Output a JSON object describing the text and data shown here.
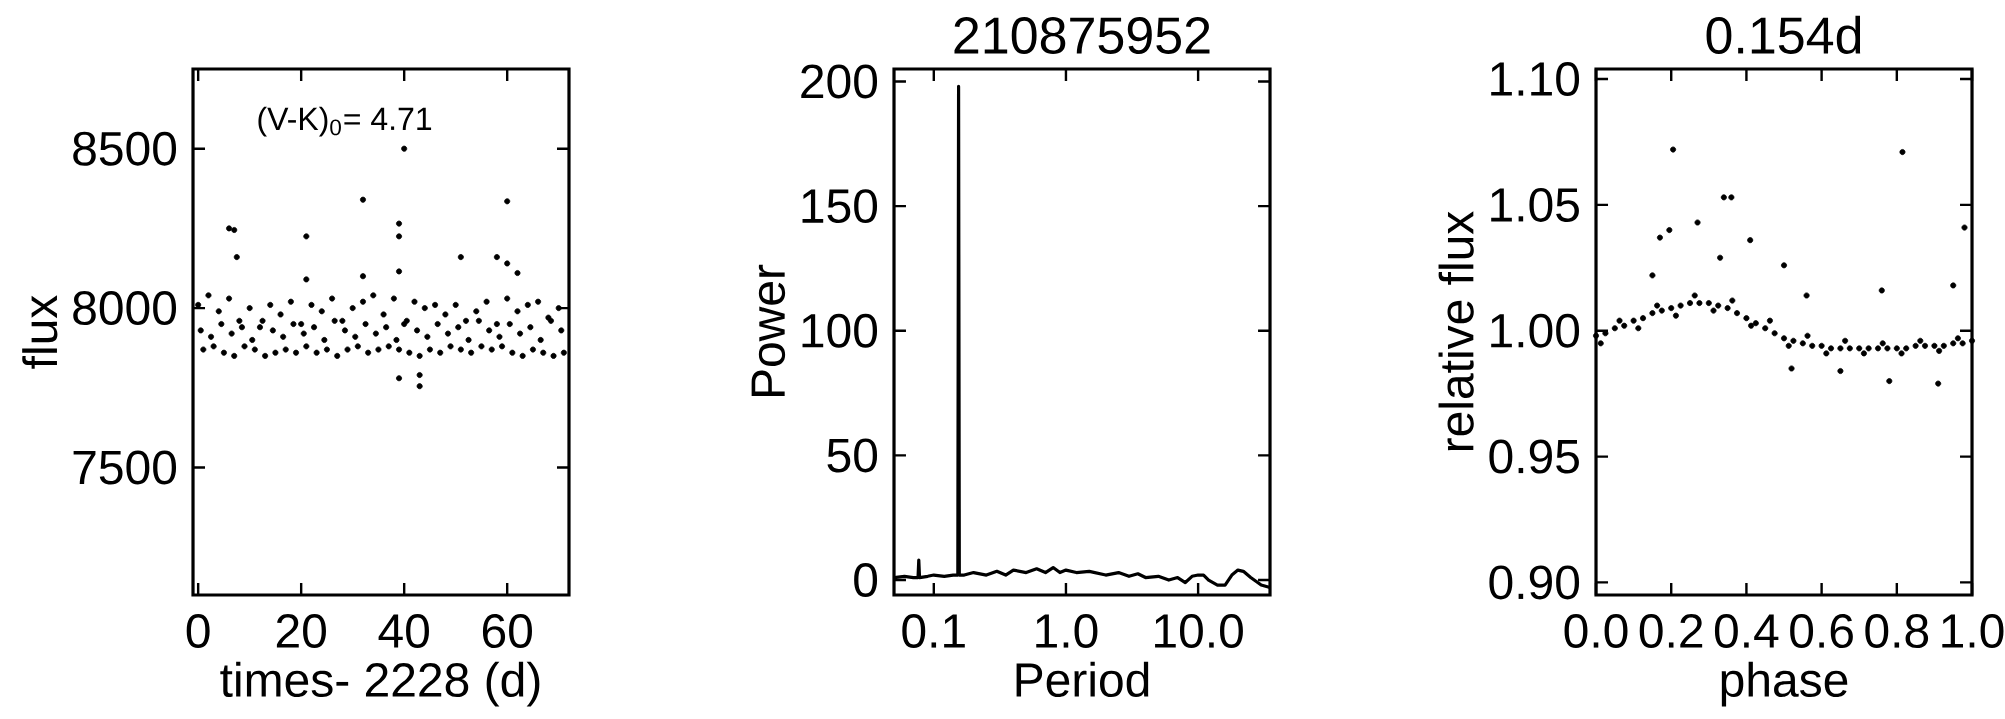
{
  "chart_data": [
    {
      "type": "scatter",
      "xlabel": "times- 2228 (d)",
      "ylabel": "flux",
      "annotations": [
        "(V-K)$_{0}$= 4.71"
      ],
      "xlim": [
        -1,
        72
      ],
      "ylim": [
        7100,
        8750
      ],
      "xticks": [
        0,
        20,
        40,
        60
      ],
      "yticks": [
        7500,
        8000,
        8500
      ],
      "marker": "circle",
      "series": [
        {
          "color": "#000000",
          "x": [
            0,
            1,
            2,
            3,
            4,
            5,
            6,
            7,
            8,
            9,
            10,
            11,
            12,
            13,
            14,
            15,
            16,
            17,
            18,
            19,
            20,
            21,
            22,
            23,
            24,
            25,
            26,
            27,
            28,
            29,
            30,
            31,
            32,
            33,
            34,
            35,
            36,
            37,
            38,
            39,
            40,
            41,
            42,
            43,
            44,
            45,
            46,
            47,
            48,
            49,
            50,
            51,
            52,
            53,
            54,
            55,
            56,
            57,
            58,
            59,
            60,
            61,
            62,
            63,
            64,
            65,
            66,
            67,
            68,
            69,
            70,
            71,
            0.5,
            2.5,
            4.5,
            6.5,
            8.5,
            10.5,
            12.5,
            14.5,
            16.5,
            18.5,
            20.5,
            22.5,
            24.5,
            26.5,
            28.5,
            30.5,
            32.5,
            34.5,
            36.5,
            38.5,
            40.5,
            42.5,
            44.5,
            46.5,
            48.5,
            50.5,
            52.5,
            54.5,
            56.5,
            58.5,
            60.5,
            62.5,
            64.5,
            66.5,
            68.5,
            70.5,
            6,
            7,
            7.5,
            21,
            21,
            32,
            32,
            39,
            39,
            39,
            40,
            51,
            60,
            58,
            60,
            62,
            39,
            43,
            43
          ],
          "values": [
            8010,
            7870,
            8040,
            7880,
            7990,
            7860,
            8030,
            7850,
            7960,
            7880,
            8000,
            7870,
            7940,
            7850,
            8010,
            7860,
            7980,
            7870,
            8020,
            7860,
            7950,
            7880,
            8010,
            7860,
            7990,
            7870,
            8030,
            7850,
            7960,
            7870,
            8000,
            7880,
            8020,
            7860,
            8040,
            7870,
            7980,
            7880,
            8030,
            7870,
            7950,
            7860,
            8020,
            7850,
            8000,
            7870,
            8010,
            7860,
            7980,
            7880,
            8010,
            7870,
            7960,
            7860,
            7990,
            7880,
            8020,
            7870,
            7950,
            7880,
            8030,
            7860,
            7990,
            7850,
            8010,
            7870,
            8020,
            7860,
            7970,
            7850,
            8000,
            7860,
            7930,
            7910,
            7950,
            7920,
            7940,
            7900,
            7960,
            7930,
            7910,
            7950,
            7920,
            7940,
            7900,
            7960,
            7930,
            7910,
            7950,
            7920,
            7940,
            7900,
            7960,
            7930,
            7910,
            7950,
            7920,
            7940,
            7900,
            7960,
            7930,
            7910,
            7950,
            7920,
            7940,
            7900,
            7960,
            7930,
            8250,
            8245,
            8160,
            8225,
            8090,
            8340,
            8100,
            8265,
            8225,
            8115,
            8500,
            8160,
            8335,
            8160,
            8140,
            8110,
            7780,
            7755,
            7790
          ]
        }
      ]
    },
    {
      "type": "line",
      "title": "210875952",
      "xlabel": "Period",
      "ylabel": "Power",
      "log": "x",
      "xlim": [
        0.05,
        35
      ],
      "ylim": [
        -6,
        205
      ],
      "xticks": [
        0.1,
        {
          "value": 1,
          "label": "1.0"
        },
        {
          "value": 10,
          "label": "10.0"
        }
      ],
      "yticks": [
        0,
        50,
        100,
        150,
        200
      ],
      "series": [
        {
          "color": "#000000",
          "x": [
            0.05,
            0.06,
            0.07,
            0.076,
            0.077,
            0.078,
            0.09,
            0.1,
            0.12,
            0.14,
            0.152,
            0.154,
            0.156,
            0.17,
            0.2,
            0.25,
            0.3,
            0.35,
            0.4,
            0.5,
            0.6,
            0.7,
            0.8,
            0.9,
            1.0,
            1.2,
            1.5,
            2,
            2.5,
            3,
            3.5,
            4,
            5,
            6,
            7,
            8,
            9,
            10,
            11,
            12,
            14,
            16,
            18,
            20,
            22,
            25,
            30,
            35
          ],
          "values": [
            1,
            1.5,
            1,
            1,
            8,
            1,
            1.5,
            2,
            1.5,
            2,
            2,
            198,
            2,
            2,
            3,
            2,
            3.5,
            2,
            4,
            3,
            4.5,
            3,
            5,
            3,
            4,
            3,
            3.5,
            2,
            3,
            1.5,
            2.5,
            1,
            1.5,
            0,
            1,
            -1,
            1.5,
            2,
            2,
            0,
            -2,
            -2,
            2,
            4,
            3.5,
            1,
            -2,
            -3
          ]
        }
      ]
    },
    {
      "type": "scatter",
      "title": "0.154d",
      "xlabel": "phase",
      "ylabel": "relative flux",
      "xlim": [
        0,
        1
      ],
      "ylim": [
        0.895,
        1.104
      ],
      "marker": "circle",
      "xticks": [
        {
          "value": 0,
          "label": "0.0"
        },
        0.2,
        0.4,
        0.6,
        0.8,
        {
          "value": 1,
          "label": "1.0"
        }
      ],
      "yticks": [
        {
          "value": 0.9,
          "label": "0.90"
        },
        0.95,
        {
          "value": 1,
          "label": "1.00"
        },
        1.05,
        {
          "value": 1.1,
          "label": "1.10"
        }
      ],
      "series": [
        {
          "color": "#000000",
          "x": [
            0,
            0.025,
            0.05,
            0.075,
            0.1,
            0.125,
            0.15,
            0.175,
            0.2,
            0.225,
            0.25,
            0.275,
            0.3,
            0.325,
            0.35,
            0.375,
            0.4,
            0.425,
            0.45,
            0.475,
            0.5,
            0.525,
            0.55,
            0.575,
            0.6,
            0.625,
            0.65,
            0.675,
            0.7,
            0.725,
            0.75,
            0.775,
            0.8,
            0.825,
            0.85,
            0.875,
            0.9,
            0.925,
            0.95,
            0.975,
            1.0,
            0.0125,
            0.0625,
            0.1125,
            0.1625,
            0.2125,
            0.2625,
            0.3125,
            0.3625,
            0.4125,
            0.4625,
            0.5125,
            0.5625,
            0.6125,
            0.6625,
            0.7125,
            0.7625,
            0.8125,
            0.8625,
            0.9125,
            0.9625,
            0.205,
            0.815,
            0.34,
            0.36,
            0.195,
            0.27,
            0.17,
            0.41,
            0.98,
            0.33,
            0.5,
            0.15,
            0.95,
            0.76,
            0.56,
            0.52,
            0.78,
            0.91,
            0.65
          ],
          "values": [
            0.998,
            0.999,
            1.001,
            1.002,
            1.004,
            1.005,
            1.007,
            1.008,
            1.009,
            1.01,
            1.011,
            1.011,
            1.011,
            1.01,
            1.009,
            1.007,
            1.005,
            1.003,
            1.001,
            0.999,
            0.997,
            0.996,
            0.995,
            0.994,
            0.994,
            0.993,
            0.993,
            0.993,
            0.993,
            0.993,
            0.993,
            0.993,
            0.993,
            0.993,
            0.994,
            0.994,
            0.994,
            0.994,
            0.995,
            0.995,
            0.996,
            0.995,
            1.004,
            1.001,
            1.01,
            1.006,
            1.014,
            1.008,
            1.012,
            1.002,
            1.004,
            0.994,
            0.998,
            0.991,
            0.996,
            0.991,
            0.995,
            0.991,
            0.996,
            0.992,
            0.997,
            1.072,
            1.071,
            1.053,
            1.053,
            1.04,
            1.043,
            1.037,
            1.036,
            1.041,
            1.029,
            1.026,
            1.022,
            1.018,
            1.016,
            1.014,
            0.985,
            0.98,
            0.979,
            0.984
          ]
        }
      ]
    }
  ]
}
